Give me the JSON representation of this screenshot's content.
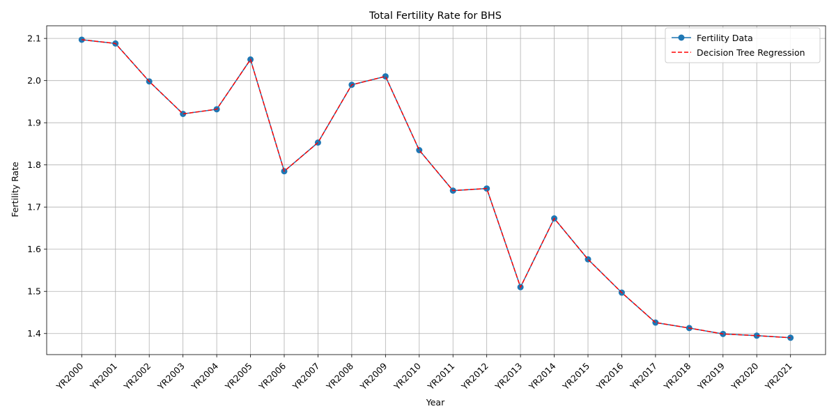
{
  "chart_data": {
    "type": "line",
    "title": "Total Fertility Rate for BHS",
    "xlabel": "Year",
    "ylabel": "Fertility Rate",
    "categories": [
      "YR2000",
      "YR2001",
      "YR2002",
      "YR2003",
      "YR2004",
      "YR2005",
      "YR2006",
      "YR2007",
      "YR2008",
      "YR2009",
      "YR2010",
      "YR2011",
      "YR2012",
      "YR2013",
      "YR2014",
      "YR2015",
      "YR2016",
      "YR2017",
      "YR2018",
      "YR2019",
      "YR2020",
      "YR2021"
    ],
    "ylim": [
      1.35,
      2.13
    ],
    "yticks": [
      1.4,
      1.5,
      1.6,
      1.7,
      1.8,
      1.9,
      2.0,
      2.1
    ],
    "ytick_labels": [
      "1.4",
      "1.5",
      "1.6",
      "1.7",
      "1.8",
      "1.9",
      "2.0",
      "2.1"
    ],
    "grid": true,
    "legend_position": "top-right",
    "series": [
      {
        "name": "Fertility Data",
        "style": "solid-with-markers",
        "color": "#1f77b4",
        "values": [
          2.097,
          2.088,
          1.998,
          1.921,
          1.932,
          2.05,
          1.785,
          1.853,
          1.99,
          2.01,
          1.835,
          1.739,
          1.744,
          1.51,
          1.673,
          1.576,
          1.497,
          1.426,
          1.413,
          1.399,
          1.395,
          1.39
        ]
      },
      {
        "name": "Decision Tree Regression",
        "style": "dashed",
        "color": "#ff0000",
        "values": [
          2.097,
          2.088,
          1.998,
          1.921,
          1.932,
          2.05,
          1.785,
          1.853,
          1.99,
          2.01,
          1.835,
          1.739,
          1.744,
          1.51,
          1.673,
          1.576,
          1.497,
          1.426,
          1.413,
          1.399,
          1.395,
          1.39
        ]
      }
    ]
  }
}
